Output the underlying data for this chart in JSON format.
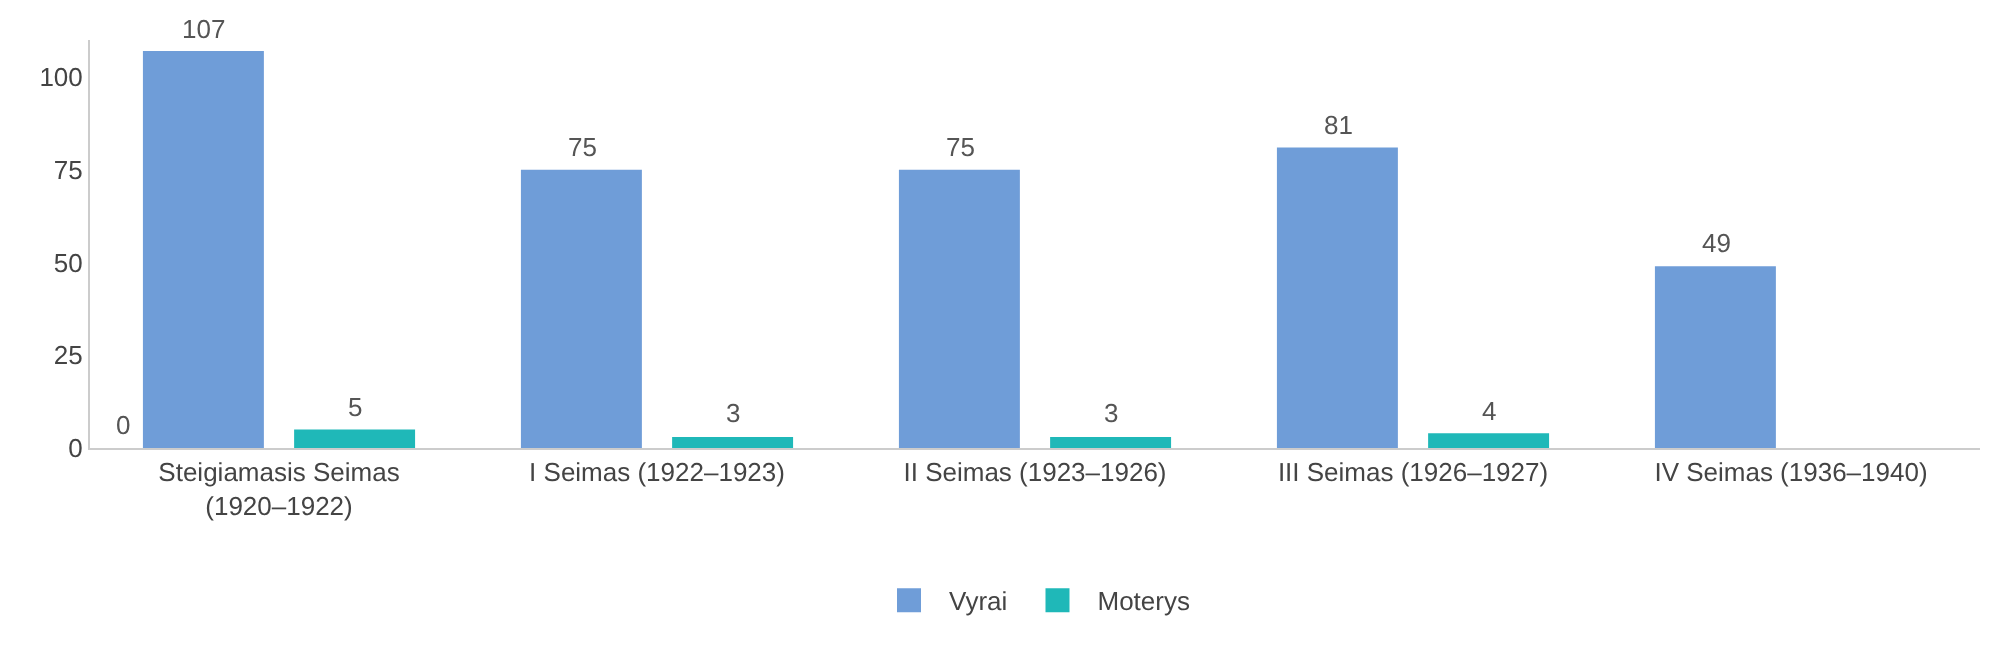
{
  "chart_data": {
    "type": "bar",
    "categories": [
      "Steigiamasis Seimas (1920–1922)",
      "I Seimas (1922–1923)",
      "II Seimas (1923–1926)",
      "III Seimas (1926–1927)",
      "IV Seimas (1936–1940)"
    ],
    "series": [
      {
        "name": "Vyrai",
        "color": "#6f9dd8",
        "values": [
          107,
          75,
          75,
          81,
          49
        ]
      },
      {
        "name": "Moterys",
        "color": "#1fb8b8",
        "values": [
          5,
          3,
          3,
          4,
          null
        ]
      }
    ],
    "ylim": [
      0,
      110
    ],
    "yticks": [
      0,
      25,
      50,
      75,
      100
    ],
    "legend": "bottom",
    "data_labels": true,
    "annotations": [
      "0"
    ]
  }
}
